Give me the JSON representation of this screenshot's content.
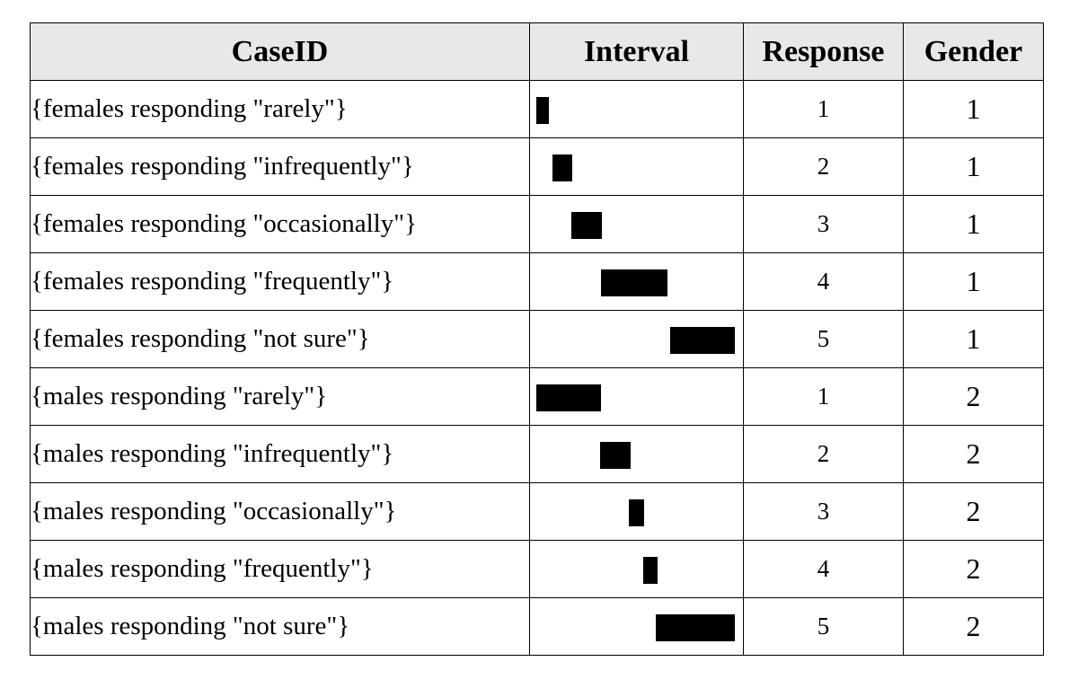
{
  "headers": {
    "caseid": "CaseID",
    "interval": "Interval",
    "response": "Response",
    "gender": "Gender"
  },
  "rows": [
    {
      "caseid": "{females responding \"rarely\"}",
      "interval_start": 0.0,
      "interval_end": 0.065,
      "response": "1",
      "gender": "1"
    },
    {
      "caseid": "{females responding \"infrequently\"}",
      "interval_start": 0.08,
      "interval_end": 0.18,
      "response": "2",
      "gender": "1"
    },
    {
      "caseid": "{females responding \"occasionally\"}",
      "interval_start": 0.175,
      "interval_end": 0.33,
      "response": "3",
      "gender": "1"
    },
    {
      "caseid": "{females responding \"frequently\"}",
      "interval_start": 0.325,
      "interval_end": 0.66,
      "response": "4",
      "gender": "1"
    },
    {
      "caseid": "{females responding \"not sure\"}",
      "interval_start": 0.675,
      "interval_end": 1.0,
      "response": "5",
      "gender": "1"
    },
    {
      "caseid": "{males responding \"rarely\"}",
      "interval_start": 0.0,
      "interval_end": 0.325,
      "response": "1",
      "gender": "2"
    },
    {
      "caseid": "{males responding \"infrequently\"}",
      "interval_start": 0.32,
      "interval_end": 0.475,
      "response": "2",
      "gender": "2"
    },
    {
      "caseid": "{males responding \"occasionally\"}",
      "interval_start": 0.465,
      "interval_end": 0.545,
      "response": "3",
      "gender": "2"
    },
    {
      "caseid": "{males responding \"frequently\"}",
      "interval_start": 0.54,
      "interval_end": 0.61,
      "response": "4",
      "gender": "2"
    },
    {
      "caseid": "{males responding \"not sure\"}",
      "interval_start": 0.6,
      "interval_end": 1.0,
      "response": "5",
      "gender": "2"
    }
  ]
}
